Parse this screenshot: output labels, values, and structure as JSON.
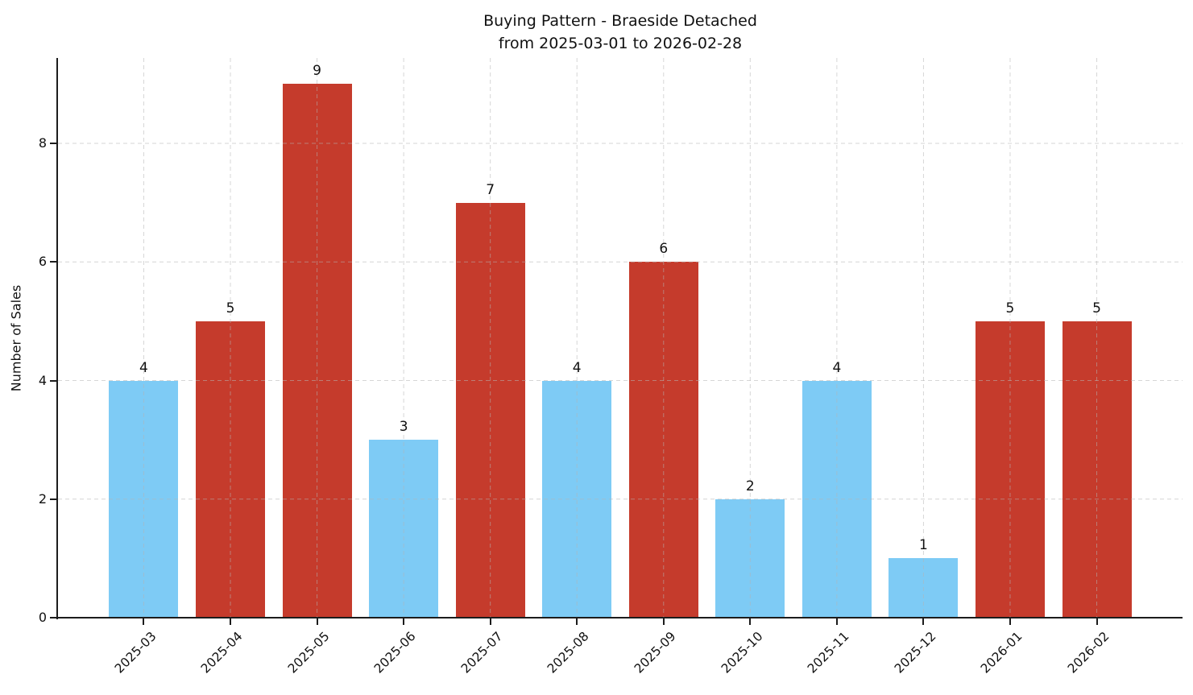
{
  "chart_data": {
    "type": "bar",
    "title": "Buying Pattern - Braeside Detached",
    "subtitle": "from 2025-03-01 to 2026-02-28",
    "xlabel": "",
    "ylabel": "Number of Sales",
    "categories": [
      "2025-03",
      "2025-04",
      "2025-05",
      "2025-06",
      "2025-07",
      "2025-08",
      "2025-09",
      "2025-10",
      "2025-11",
      "2025-12",
      "2026-01",
      "2026-02"
    ],
    "values": [
      4,
      5,
      9,
      3,
      7,
      4,
      6,
      2,
      4,
      1,
      5,
      5
    ],
    "bar_colors": [
      "blue",
      "red",
      "red",
      "blue",
      "red",
      "blue",
      "red",
      "blue",
      "blue",
      "blue",
      "red",
      "red"
    ],
    "palette": {
      "blue": "#7ECBF5",
      "red": "#C53B2C"
    },
    "y_ticks": [
      0,
      2,
      4,
      6,
      8
    ],
    "ylim": [
      0,
      9.44
    ],
    "xlim_pad": 0.99,
    "bar_width_fraction": 0.8,
    "grid": "dashed, horizontal and vertical, drawn above bars",
    "grid_color": "#b4b4b4",
    "legend": "none",
    "value_labels": "above each bar"
  }
}
